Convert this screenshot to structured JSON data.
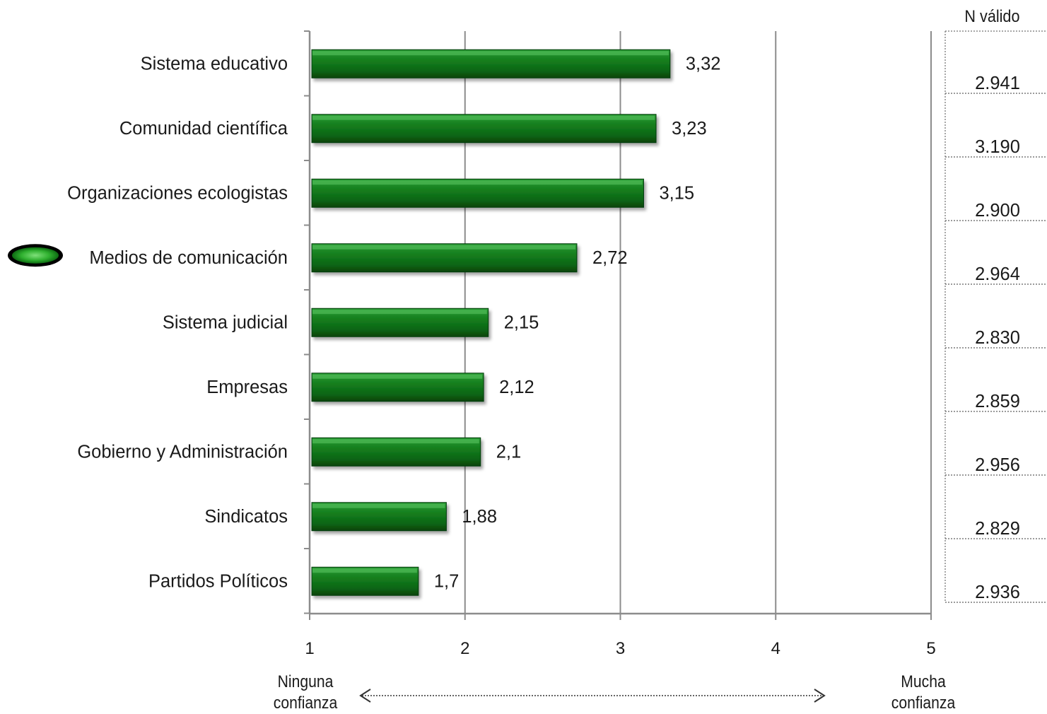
{
  "chart_data": {
    "type": "bar",
    "orientation": "horizontal",
    "categories": [
      "Sistema educativo",
      "Comunidad científica",
      "Organizaciones ecologistas",
      "Medios de comunicación",
      "Sistema judicial",
      "Empresas",
      "Gobierno y Administración",
      "Sindicatos",
      "Partidos Políticos"
    ],
    "values": [
      3.32,
      3.23,
      3.15,
      2.72,
      2.15,
      2.12,
      2.1,
      1.88,
      1.7
    ],
    "value_labels": [
      "3,32",
      "3,23",
      "3,15",
      "2,72",
      "2,15",
      "2,12",
      "2,1",
      "1,88",
      "1,7"
    ],
    "n_valid": [
      "2.941",
      "3.190",
      "2.900",
      "2.964",
      "2.830",
      "2.859",
      "2.956",
      "2.829",
      "2.936"
    ],
    "n_valid_header": "N válido",
    "xlim": [
      1,
      5
    ],
    "xticks": [
      "1",
      "2",
      "3",
      "4",
      "5"
    ],
    "scale_low_label": [
      "Ninguna",
      "confianza"
    ],
    "scale_high_label": [
      "Mucha",
      "confianza"
    ],
    "highlighted_category": "Medios de comunicación",
    "grid": true,
    "bar_color": "#0e7a1a",
    "bar_color_light": "#38b040",
    "bar_color_dark": "#0a4d10"
  }
}
